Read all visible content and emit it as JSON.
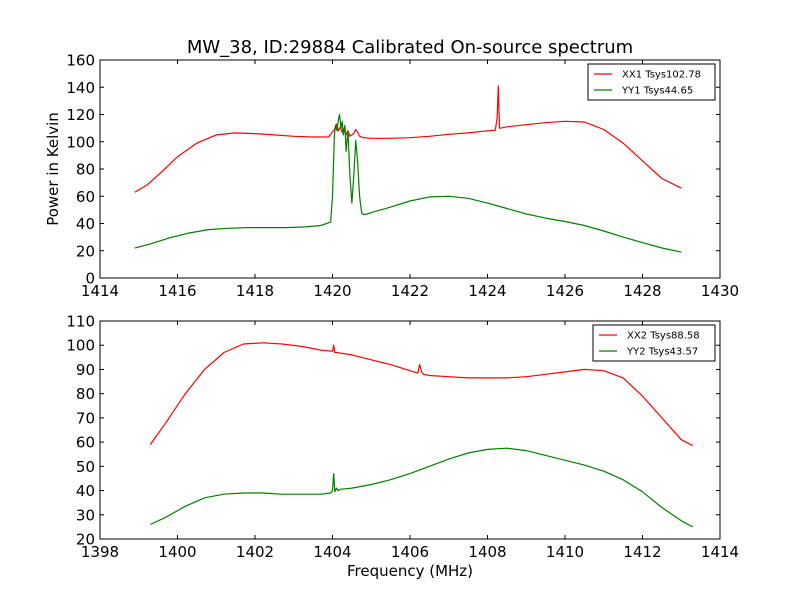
{
  "title": "MW_38, ID:29884 Calibrated On-source spectrum",
  "colors": {
    "xx": "#ff0000",
    "yy": "#008000",
    "frame": "#000000",
    "background": "#ffffff"
  },
  "chart_data": [
    {
      "type": "line",
      "title": "MW_38, ID:29884 Calibrated On-source spectrum",
      "xlabel": "",
      "ylabel": "Power in Kelvin",
      "xlim": [
        1414,
        1430
      ],
      "ylim": [
        0,
        160
      ],
      "xticks": [
        1414,
        1416,
        1418,
        1420,
        1422,
        1424,
        1426,
        1428,
        1430
      ],
      "yticks": [
        0,
        20,
        40,
        60,
        80,
        100,
        120,
        140,
        160
      ],
      "grid": false,
      "legend_position": "top-right",
      "series": [
        {
          "name": "XX1 Tsys102.78",
          "color": "#ff0000",
          "x": [
            1414.9,
            1415.2,
            1415.6,
            1416.0,
            1416.5,
            1417.0,
            1417.5,
            1418.0,
            1418.5,
            1419.0,
            1419.5,
            1419.9,
            1420.05,
            1420.1,
            1420.15,
            1420.2,
            1420.25,
            1420.3,
            1420.35,
            1420.4,
            1420.45,
            1420.5,
            1420.55,
            1420.6,
            1420.65,
            1420.7,
            1420.8,
            1421.0,
            1421.5,
            1422.0,
            1422.5,
            1423.0,
            1423.5,
            1424.0,
            1424.2,
            1424.25,
            1424.28,
            1424.31,
            1424.35,
            1424.5,
            1425.0,
            1425.5,
            1426.0,
            1426.5,
            1427.0,
            1427.5,
            1428.0,
            1428.5,
            1429.0
          ],
          "y": [
            63,
            68,
            78,
            89,
            99,
            105,
            106.5,
            106,
            105,
            104,
            103.5,
            103.5,
            109,
            113,
            108,
            111,
            107,
            110,
            105,
            108,
            104,
            105,
            106,
            109,
            107,
            104,
            103,
            102.5,
            102.5,
            103,
            104,
            105.5,
            106.5,
            108,
            108.5,
            118,
            141,
            110,
            110,
            111,
            112.5,
            114,
            115,
            114.5,
            109,
            99,
            86,
            73,
            66
          ]
        },
        {
          "name": "YY1 Tsys44.65",
          "color": "#008000",
          "x": [
            1414.9,
            1415.3,
            1415.8,
            1416.3,
            1416.8,
            1417.3,
            1417.8,
            1418.3,
            1418.8,
            1419.3,
            1419.7,
            1419.95,
            1420.0,
            1420.05,
            1420.08,
            1420.12,
            1420.15,
            1420.18,
            1420.22,
            1420.25,
            1420.28,
            1420.32,
            1420.35,
            1420.4,
            1420.45,
            1420.5,
            1420.55,
            1420.6,
            1420.65,
            1420.7,
            1420.75,
            1420.8,
            1420.9,
            1421.0,
            1421.5,
            1422.0,
            1422.5,
            1423.0,
            1423.5,
            1424.0,
            1424.5,
            1425.0,
            1425.5,
            1426.0,
            1426.5,
            1427.0,
            1427.5,
            1428.0,
            1428.5,
            1429.0
          ],
          "y": [
            22,
            25,
            29.5,
            33,
            35.5,
            36.5,
            37,
            37,
            37,
            37.5,
            38.5,
            41,
            60,
            105,
            112,
            108,
            116,
            120,
            110,
            115,
            105,
            112,
            93,
            108,
            75,
            55,
            75,
            101,
            85,
            60,
            48,
            46.5,
            47,
            48,
            52,
            56.5,
            59.5,
            60,
            58.5,
            55,
            51,
            47,
            44,
            41.5,
            38.5,
            34.5,
            30,
            26,
            22,
            19
          ]
        }
      ]
    },
    {
      "type": "line",
      "title": "",
      "xlabel": "Frequency (MHz)",
      "ylabel": "",
      "xlim": [
        1398,
        1414
      ],
      "ylim": [
        20,
        110
      ],
      "xticks": [
        1398,
        1400,
        1402,
        1404,
        1406,
        1408,
        1410,
        1412,
        1414
      ],
      "yticks": [
        20,
        30,
        40,
        50,
        60,
        70,
        80,
        90,
        100,
        110
      ],
      "grid": false,
      "legend_position": "top-right",
      "series": [
        {
          "name": "XX2 Tsys88.58",
          "color": "#ff0000",
          "x": [
            1399.3,
            1399.7,
            1400.2,
            1400.7,
            1401.2,
            1401.7,
            1402.2,
            1402.7,
            1403.2,
            1403.7,
            1404.0,
            1404.03,
            1404.06,
            1404.1,
            1404.5,
            1405.0,
            1405.5,
            1406.0,
            1406.2,
            1406.25,
            1406.3,
            1406.35,
            1406.5,
            1407.0,
            1407.5,
            1408.0,
            1408.5,
            1409.0,
            1409.5,
            1410.0,
            1410.5,
            1411.0,
            1411.5,
            1412.0,
            1412.5,
            1413.0,
            1413.3
          ],
          "y": [
            59,
            68,
            80,
            90,
            97,
            100.5,
            101,
            100.5,
            99.5,
            98,
            97.5,
            100,
            97,
            97,
            96,
            94,
            92,
            89.5,
            88.5,
            92,
            89,
            88,
            87.5,
            87,
            86.5,
            86.5,
            86.5,
            87,
            88,
            89,
            90,
            89.5,
            86.5,
            79,
            70,
            61,
            58.5
          ]
        },
        {
          "name": "YY2 Tsys43.57",
          "color": "#008000",
          "x": [
            1399.3,
            1399.7,
            1400.2,
            1400.7,
            1401.2,
            1401.7,
            1402.2,
            1402.7,
            1403.2,
            1403.7,
            1403.95,
            1404.0,
            1404.03,
            1404.06,
            1404.1,
            1404.15,
            1404.2,
            1404.5,
            1405.0,
            1405.5,
            1406.0,
            1406.5,
            1407.0,
            1407.5,
            1408.0,
            1408.5,
            1409.0,
            1409.5,
            1410.0,
            1410.5,
            1411.0,
            1411.5,
            1412.0,
            1412.5,
            1413.0,
            1413.3
          ],
          "y": [
            26,
            29,
            33.5,
            37,
            38.5,
            39,
            39,
            38.5,
            38.5,
            38.5,
            39,
            40,
            47,
            39.5,
            41,
            40,
            40.5,
            41,
            42.5,
            44.5,
            47,
            50,
            53,
            55.5,
            57,
            57.5,
            56.5,
            54.5,
            52.5,
            50.5,
            48,
            44.5,
            39.5,
            33,
            27.5,
            25
          ]
        }
      ]
    }
  ]
}
